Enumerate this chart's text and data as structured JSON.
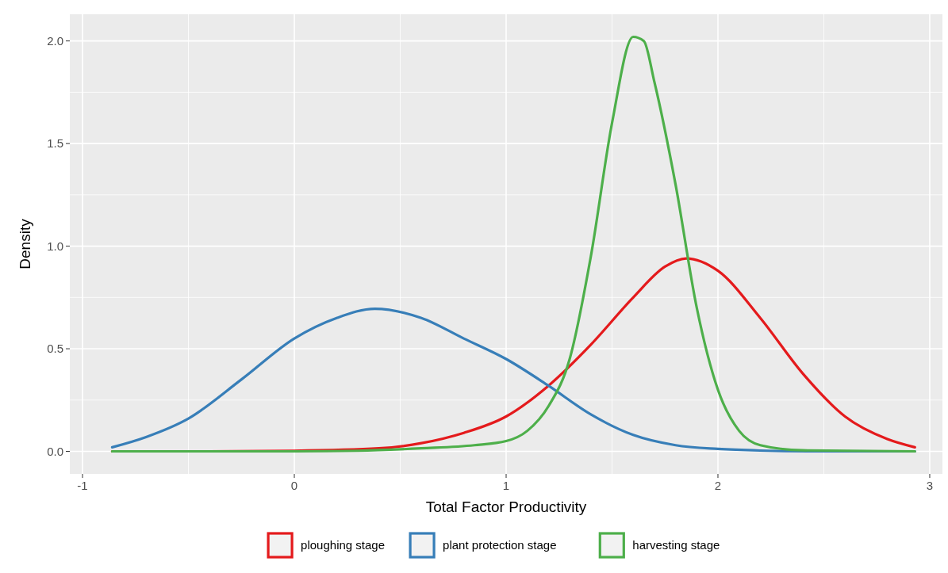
{
  "chart_data": {
    "type": "line",
    "xlabel": "Total Factor Productivity",
    "ylabel": "Density",
    "xlim": [
      -1.06,
      3.06
    ],
    "ylim": [
      -0.11,
      2.13
    ],
    "xticks": [
      -1,
      0,
      1,
      2,
      3
    ],
    "yticks": [
      {
        "value": 0,
        "label": "0.0"
      },
      {
        "value": 0.5,
        "label": "0.5"
      },
      {
        "value": 1,
        "label": "1.0"
      },
      {
        "value": 1.5,
        "label": "1.5"
      },
      {
        "value": 2,
        "label": "2.0"
      }
    ],
    "grid": true,
    "legend": "bottom",
    "line_style": "solid",
    "marker": "none",
    "series": [
      {
        "name": "ploughing stage",
        "color": "#e41a1c",
        "x": [
          -0.86,
          -0.4,
          0,
          0.4,
          0.6,
          0.8,
          1.0,
          1.2,
          1.4,
          1.6,
          1.75,
          1.85,
          2.0,
          2.2,
          2.4,
          2.6,
          2.8,
          2.93
        ],
        "values": [
          0,
          0,
          0.003,
          0.015,
          0.04,
          0.09,
          0.17,
          0.32,
          0.52,
          0.75,
          0.9,
          0.94,
          0.88,
          0.65,
          0.38,
          0.17,
          0.06,
          0.02
        ]
      },
      {
        "name": "plant protection stage",
        "color": "#377eb8",
        "x": [
          -0.86,
          -0.7,
          -0.5,
          -0.25,
          0,
          0.2,
          0.38,
          0.6,
          0.8,
          1.0,
          1.2,
          1.4,
          1.6,
          1.8,
          2.0,
          2.2,
          2.5,
          2.93
        ],
        "values": [
          0.02,
          0.07,
          0.16,
          0.35,
          0.55,
          0.65,
          0.695,
          0.65,
          0.55,
          0.45,
          0.32,
          0.18,
          0.08,
          0.03,
          0.012,
          0.004,
          0,
          0
        ]
      },
      {
        "name": "harvesting stage",
        "color": "#4daf4a",
        "x": [
          -0.86,
          0,
          0.3,
          0.6,
          0.85,
          1.0,
          1.1,
          1.2,
          1.3,
          1.4,
          1.5,
          1.6,
          1.65,
          1.7,
          1.8,
          1.9,
          2.0,
          2.1,
          2.2,
          2.4,
          2.93
        ],
        "values": [
          0,
          0,
          0.003,
          0.015,
          0.03,
          0.05,
          0.1,
          0.22,
          0.45,
          0.95,
          1.6,
          2.02,
          2.0,
          1.8,
          1.3,
          0.7,
          0.3,
          0.1,
          0.03,
          0.005,
          0
        ]
      }
    ]
  }
}
